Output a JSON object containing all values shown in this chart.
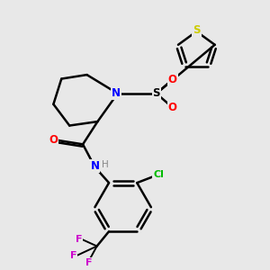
{
  "background_color": "#e8e8e8",
  "bond_color": "#000000",
  "atom_colors": {
    "N": "#0000ff",
    "O": "#ff0000",
    "S_thiophene": "#cccc00",
    "Cl": "#00bb00",
    "F": "#cc00cc",
    "H": "#888888",
    "C": "#000000"
  },
  "figsize": [
    3.0,
    3.0
  ],
  "dpi": 100
}
